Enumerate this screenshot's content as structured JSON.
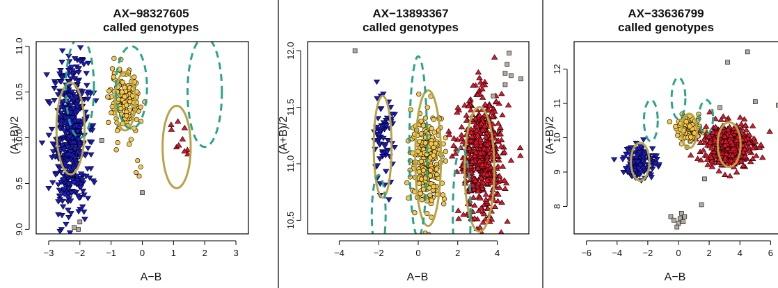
{
  "colors": {
    "group_ab": "#1a1ac8",
    "group_bb": "#f6c84a",
    "group_aa": "#e0162b",
    "no_call": "#b3aaa0",
    "fitted_ellipse": "#b6a447",
    "prior_ellipse": "#2aa38a",
    "marker_stroke": "#000000"
  },
  "chart_data": [
    {
      "type": "scatter",
      "title": "AX−98327605",
      "subtitle": "called genotypes",
      "xlabel": "A−B",
      "ylabel": "(A+B)/2",
      "xlim": [
        -3.4,
        3.4
      ],
      "ylim": [
        8.95,
        11.05
      ],
      "xticks": [
        -3,
        -2,
        -1,
        0,
        1,
        2,
        3
      ],
      "xtick_labels": [
        "−3",
        "−2",
        "−1",
        "0",
        "1",
        "2",
        "3"
      ],
      "yticks": [
        9.0,
        9.5,
        10.0,
        10.5,
        11.0
      ],
      "ytick_labels": [
        "9.0",
        "9.5",
        "10.0",
        "10.5",
        "11.0"
      ],
      "grid": false,
      "clusters": [
        {
          "marker": "triangle-down",
          "color": "blue",
          "center": [
            -2.3,
            10.0
          ],
          "spread": [
            0.28,
            0.42
          ],
          "n": 500
        },
        {
          "marker": "circle",
          "color": "yellow",
          "center": [
            -0.55,
            10.38
          ],
          "spread": [
            0.24,
            0.17
          ],
          "n": 150
        },
        {
          "marker": "triangle-up",
          "color": "red",
          "center": [
            1.1,
            9.9
          ],
          "spread": [
            0.2,
            0.15
          ],
          "n": 10
        }
      ],
      "points_extra": [
        {
          "marker": "circle",
          "color": "yellow",
          "xy": [
            [
              -0.15,
              9.75
            ],
            [
              -0.2,
              9.62
            ],
            [
              -0.05,
              9.68
            ],
            [
              -0.1,
              9.58
            ]
          ]
        },
        {
          "marker": "square",
          "color": "gray",
          "xy": [
            [
              -1.3,
              9.97
            ],
            [
              -2.0,
              9.08
            ],
            [
              -2.05,
              9.0
            ],
            [
              -2.18,
              9.02
            ],
            [
              0.0,
              9.4
            ]
          ]
        }
      ],
      "fitted_ellipses": [
        {
          "center": [
            -2.3,
            10.1
          ],
          "radii": [
            0.45,
            0.5
          ]
        },
        {
          "center": [
            -0.55,
            10.4
          ],
          "radii": [
            0.32,
            0.32
          ]
        },
        {
          "center": [
            1.1,
            9.9
          ],
          "radii": [
            0.45,
            0.45
          ]
        }
      ],
      "prior_ellipses": [
        {
          "center": [
            -2.0,
            10.55
          ],
          "radii": [
            0.45,
            0.55
          ]
        },
        {
          "center": [
            -0.35,
            10.55
          ],
          "radii": [
            0.5,
            0.45
          ]
        },
        {
          "center": [
            2.0,
            10.5
          ],
          "radii": [
            0.55,
            0.6
          ]
        }
      ]
    },
    {
      "type": "scatter",
      "title": "AX−13893367",
      "subtitle": "called genotypes",
      "xlabel": "A−B",
      "ylabel": "(A+B)/2",
      "xlim": [
        -5.6,
        5.6
      ],
      "ylim": [
        10.38,
        12.08
      ],
      "xticks": [
        -4,
        -2,
        0,
        2,
        4
      ],
      "xtick_labels": [
        "−4",
        "−2",
        "0",
        "2",
        "4"
      ],
      "yticks": [
        10.5,
        11.0,
        11.5,
        12.0
      ],
      "ytick_labels": [
        "10.5",
        "11.0",
        "11.5",
        "12.0"
      ],
      "grid": false,
      "clusters": [
        {
          "marker": "triangle-down",
          "color": "blue",
          "center": [
            -1.8,
            11.2
          ],
          "spread": [
            0.3,
            0.2
          ],
          "n": 70
        },
        {
          "marker": "circle",
          "color": "yellow",
          "center": [
            0.5,
            11.05
          ],
          "spread": [
            0.42,
            0.2
          ],
          "n": 250
        },
        {
          "marker": "triangle-up",
          "color": "red",
          "center": [
            3.2,
            11.05
          ],
          "spread": [
            0.55,
            0.27
          ],
          "n": 500
        }
      ],
      "points_extra": [
        {
          "marker": "square",
          "color": "gray",
          "xy": [
            [
              -3.2,
              12.0
            ],
            [
              4.6,
              11.98
            ],
            [
              4.5,
              11.88
            ],
            [
              4.4,
              11.8
            ],
            [
              4.7,
              11.78
            ],
            [
              5.2,
              11.75
            ],
            [
              4.4,
              11.7
            ],
            [
              3.8,
              11.6
            ]
          ]
        }
      ],
      "fitted_ellipses": [
        {
          "center": [
            -1.8,
            11.15
          ],
          "radii": [
            0.45,
            0.45
          ]
        },
        {
          "center": [
            0.5,
            11.05
          ],
          "radii": [
            0.65,
            0.6
          ]
        },
        {
          "center": [
            3.1,
            10.95
          ],
          "radii": [
            0.75,
            0.55
          ]
        }
      ],
      "prior_ellipses": [
        {
          "center": [
            -2.0,
            10.55
          ],
          "radii": [
            0.35,
            0.35
          ]
        },
        {
          "center": [
            0.0,
            11.15
          ],
          "radii": [
            0.45,
            0.8
          ]
        },
        {
          "center": [
            2.2,
            10.55
          ],
          "radii": [
            0.45,
            0.6
          ]
        }
      ]
    },
    {
      "type": "scatter",
      "title": "AX−33636799",
      "subtitle": "called genotypes",
      "xlabel": "A−B",
      "ylabel": "(A+B)/2",
      "xlim": [
        -6.8,
        6.8
      ],
      "ylim": [
        7.2,
        12.8
      ],
      "xticks": [
        -6,
        -4,
        -2,
        0,
        2,
        4,
        6
      ],
      "xtick_labels": [
        "−6",
        "−4",
        "−2",
        "0",
        "2",
        "4",
        "6"
      ],
      "yticks": [
        8,
        9,
        10,
        11,
        12
      ],
      "ytick_labels": [
        "8",
        "9",
        "10",
        "11",
        "12"
      ],
      "grid": false,
      "clusters": [
        {
          "marker": "triangle-down",
          "color": "blue",
          "center": [
            -2.5,
            9.3
          ],
          "spread": [
            0.55,
            0.25
          ],
          "n": 120
        },
        {
          "marker": "circle",
          "color": "yellow",
          "center": [
            0.7,
            10.25
          ],
          "spread": [
            0.42,
            0.18
          ],
          "n": 100
        },
        {
          "marker": "triangle-up",
          "color": "red",
          "center": [
            3.3,
            9.8
          ],
          "spread": [
            0.8,
            0.32
          ],
          "n": 450
        }
      ],
      "points_extra": [
        {
          "marker": "square",
          "color": "gray",
          "xy": [
            [
              -0.5,
              7.7
            ],
            [
              -0.3,
              7.6
            ],
            [
              0.0,
              7.5
            ],
            [
              0.1,
              7.65
            ],
            [
              0.2,
              7.8
            ],
            [
              -0.1,
              7.4
            ],
            [
              0.3,
              7.55
            ],
            [
              0.4,
              7.7
            ],
            [
              1.5,
              8.05
            ],
            [
              1.7,
              8.8
            ],
            [
              3.2,
              12.2
            ],
            [
              4.5,
              12.5
            ],
            [
              5.0,
              11.05
            ],
            [
              6.5,
              10.95
            ],
            [
              2.7,
              10.88
            ]
          ]
        }
      ],
      "fitted_ellipses": [
        {
          "center": [
            -2.5,
            9.3
          ],
          "radii": [
            0.6,
            0.55
          ]
        },
        {
          "center": [
            0.7,
            10.2
          ],
          "radii": [
            0.5,
            0.5
          ]
        },
        {
          "center": [
            3.3,
            9.8
          ],
          "radii": [
            0.75,
            0.65
          ]
        }
      ],
      "prior_ellipses": [
        {
          "center": [
            -1.8,
            10.5
          ],
          "radii": [
            0.45,
            0.6
          ]
        },
        {
          "center": [
            0.0,
            11.15
          ],
          "radii": [
            0.45,
            0.6
          ]
        },
        {
          "center": [
            1.8,
            10.6
          ],
          "radii": [
            0.45,
            0.5
          ]
        }
      ]
    }
  ]
}
